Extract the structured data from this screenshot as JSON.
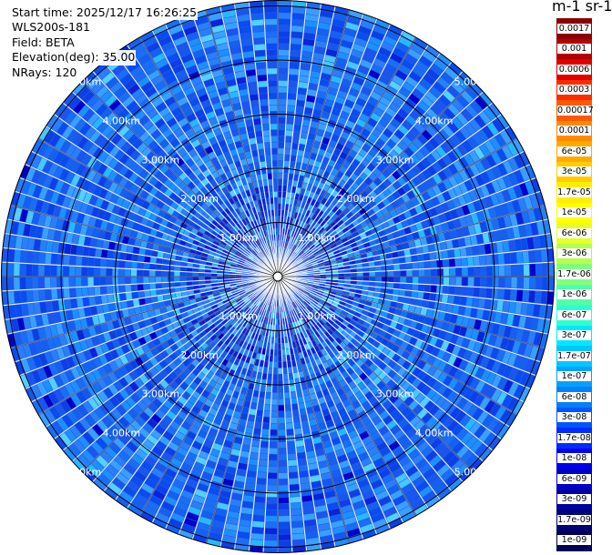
{
  "header": {
    "start_time": "Start time: 2025/12/17 16:26:25",
    "instrument": "WLS200s-181",
    "field": "Field: BETA",
    "elevation": "Elevation(deg): 35.00",
    "nrays": "NRays: 120"
  },
  "chart_data": {
    "type": "heatmap",
    "projection": "polar-ppi",
    "title": "",
    "n_rays": 120,
    "elevation_deg": 35.0,
    "range_rings_km": [
      1.0,
      2.0,
      3.0,
      4.0,
      5.0
    ],
    "ring_label_angles_deg": [
      45,
      135,
      225,
      315
    ],
    "ring_labels": [
      "1.00km",
      "2.00km",
      "3.00km",
      "4.00km",
      "5.00km"
    ],
    "max_range_km": 5.0,
    "grid": true,
    "colorbar": {
      "title": "m-1 sr-1",
      "ticks": [
        "0.0017",
        "0.001",
        "0.0006",
        "0.0003",
        "0.00017",
        "0.0001",
        "6e-05",
        "3e-05",
        "1.7e-05",
        "1e-05",
        "6e-06",
        "3e-06",
        "1.7e-06",
        "1e-06",
        "6e-07",
        "3e-07",
        "1.7e-07",
        "1e-07",
        "6e-08",
        "3e-08",
        "1.7e-08",
        "1e-08",
        "6e-09",
        "3e-09",
        "1.7e-09",
        "1e-09"
      ],
      "colors": [
        "#8b0000",
        "#b40000",
        "#e00000",
        "#ff2a00",
        "#ff5a00",
        "#ff8a00",
        "#ffaa00",
        "#ffcc00",
        "#ffee00",
        "#ffff00",
        "#e6ff26",
        "#b5ff4a",
        "#80ff80",
        "#50ffaa",
        "#2effd0",
        "#00e8ff",
        "#00c6ff",
        "#00a2ff",
        "#0080ff",
        "#0055ff",
        "#002cff",
        "#0000ee",
        "#0000c8",
        "#0000a0",
        "#00007a",
        "#000055"
      ]
    },
    "dominant_value_range": [
      "3e-08",
      "1e-07"
    ]
  }
}
